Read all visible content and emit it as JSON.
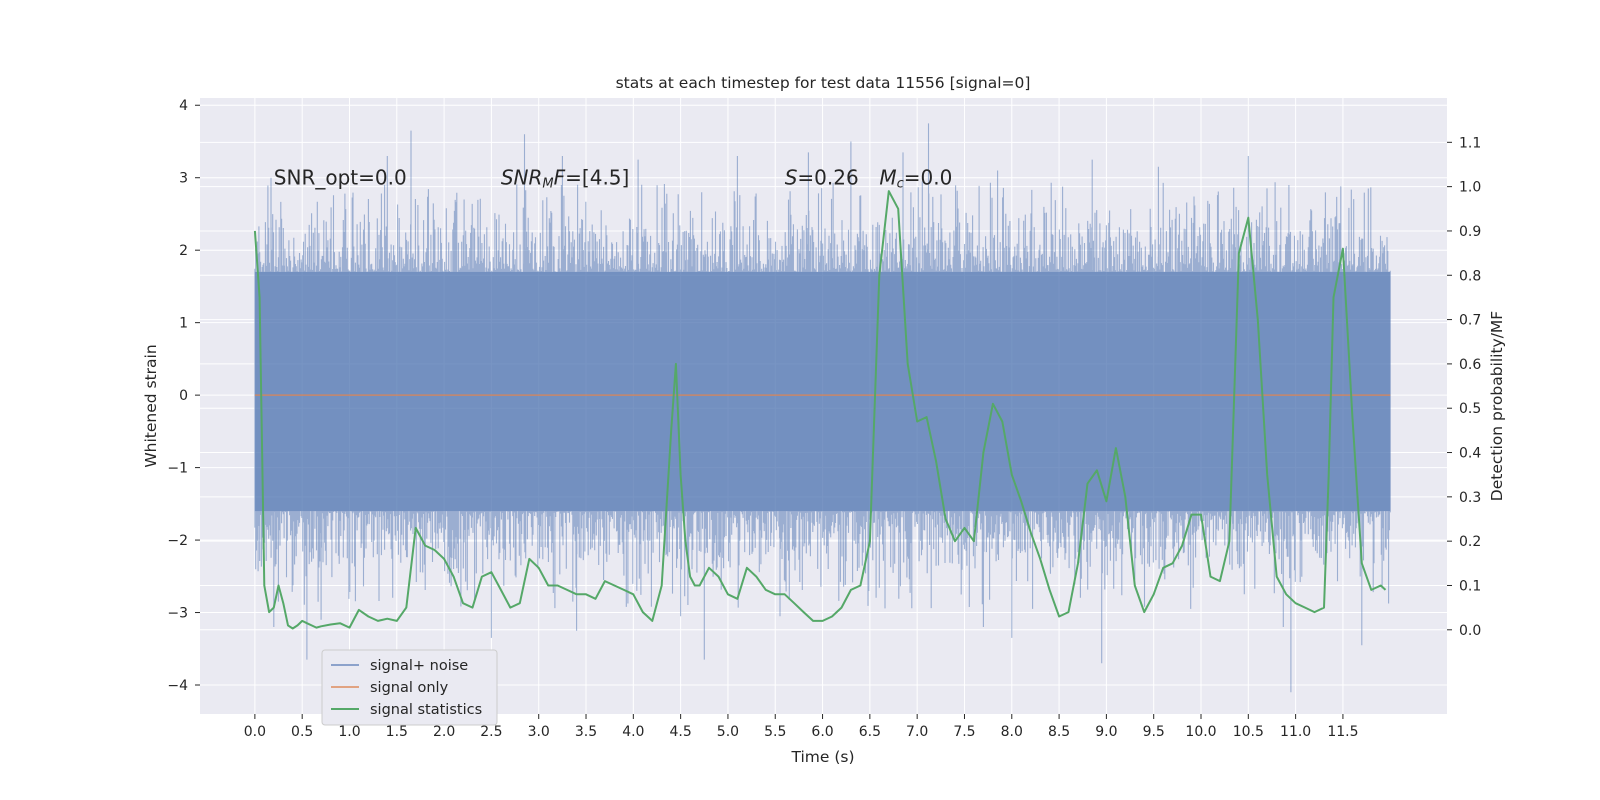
{
  "chart_data": {
    "type": "line",
    "title": "stats at each timestep for test data 11556 [signal=0]",
    "xlabel": "Time (s)",
    "ylabel": "Whitened strain",
    "y2label": "Detection probability/MF",
    "xlim": [
      -0.58,
      12.6
    ],
    "ylim": [
      -4.4,
      4.1
    ],
    "y2lim": [
      -0.19,
      1.2
    ],
    "x_ticks": [
      0.0,
      0.5,
      1.0,
      1.5,
      2.0,
      2.5,
      3.0,
      3.5,
      4.0,
      4.5,
      5.0,
      5.5,
      6.0,
      6.5,
      7.0,
      7.5,
      8.0,
      8.5,
      9.0,
      9.5,
      10.0,
      10.5,
      11.0,
      11.5
    ],
    "x_tick_labels": [
      "0.0",
      "0.5",
      "1.0",
      "1.5",
      "2.0",
      "2.5",
      "3.0",
      "3.5",
      "4.0",
      "4.5",
      "5.0",
      "5.5",
      "6.0",
      "6.5",
      "7.0",
      "7.5",
      "8.0",
      "8.5",
      "9.0",
      "9.5",
      "10.0",
      "10.5",
      "11.0",
      "11.5"
    ],
    "y_ticks": [
      -4,
      -3,
      -2,
      -1,
      0,
      1,
      2,
      3,
      4
    ],
    "y_tick_labels": [
      "−4",
      "−3",
      "−2",
      "−1",
      "0",
      "1",
      "2",
      "3",
      "4"
    ],
    "y2_ticks": [
      0.0,
      0.1,
      0.2,
      0.3,
      0.4,
      0.5,
      0.6,
      0.7,
      0.8,
      0.9,
      1.0,
      1.1
    ],
    "y2_tick_labels": [
      "0.0",
      "0.1",
      "0.2",
      "0.3",
      "0.4",
      "0.5",
      "0.6",
      "0.7",
      "0.8",
      "0.9",
      "1.0",
      "1.1"
    ],
    "grid": true,
    "legend_placement": "lower-left",
    "annotations": [
      {
        "parts": [
          {
            "text": "SNR_opt=0.0"
          }
        ],
        "x": 0.2,
        "y": 3.0
      },
      {
        "parts": [
          {
            "text": "SNR",
            "italic": true
          },
          {
            "text": "M",
            "italic": true,
            "sub": true
          },
          {
            "text": "F",
            "italic": true
          },
          {
            "text": "=[4.5]"
          }
        ],
        "x": 2.6,
        "y": 3.0
      },
      {
        "parts": [
          {
            "text": "S",
            "italic": true
          },
          {
            "text": "=0.26"
          }
        ],
        "x": 5.6,
        "y": 3.0
      },
      {
        "parts": [
          {
            "text": "M",
            "italic": true
          },
          {
            "text": "c",
            "italic": true,
            "sub": true
          },
          {
            "text": "=0.0"
          }
        ],
        "x": 6.6,
        "y": 3.0
      }
    ],
    "series": [
      {
        "name": "signal+ noise",
        "axis": "left",
        "style": "noise-band",
        "color": "#4c72b0",
        "x_range": [
          0.0,
          12.0
        ],
        "core_band": [
          -1.6,
          1.7
        ],
        "extremes": [
          {
            "x": 0.17,
            "y": 3.0
          },
          {
            "x": 0.2,
            "y": -3.2
          },
          {
            "x": 0.55,
            "y": -3.65
          },
          {
            "x": 0.7,
            "y": -3.1
          },
          {
            "x": 1.4,
            "y": 3.3
          },
          {
            "x": 1.65,
            "y": 3.65
          },
          {
            "x": 2.5,
            "y": -3.35
          },
          {
            "x": 2.85,
            "y": 3.6
          },
          {
            "x": 3.25,
            "y": 3.3
          },
          {
            "x": 3.4,
            "y": -3.25
          },
          {
            "x": 4.05,
            "y": 3.25
          },
          {
            "x": 4.5,
            "y": -3.05
          },
          {
            "x": 4.75,
            "y": -3.65
          },
          {
            "x": 5.1,
            "y": 3.3
          },
          {
            "x": 5.55,
            "y": -3.05
          },
          {
            "x": 5.85,
            "y": 3.35
          },
          {
            "x": 6.3,
            "y": 3.5
          },
          {
            "x": 6.85,
            "y": 3.35
          },
          {
            "x": 7.12,
            "y": 3.75
          },
          {
            "x": 7.7,
            "y": -3.2
          },
          {
            "x": 7.85,
            "y": 3.1
          },
          {
            "x": 8.0,
            "y": -3.35
          },
          {
            "x": 8.85,
            "y": 3.25
          },
          {
            "x": 8.95,
            "y": -3.7
          },
          {
            "x": 9.55,
            "y": 3.15
          },
          {
            "x": 10.5,
            "y": 3.3
          },
          {
            "x": 10.87,
            "y": -3.2
          },
          {
            "x": 10.95,
            "y": -4.1
          },
          {
            "x": 11.7,
            "y": -3.45
          }
        ]
      },
      {
        "name": "signal only",
        "axis": "left",
        "color": "#dd8452",
        "x": [
          0.0,
          12.0
        ],
        "y": [
          0.0,
          0.0
        ]
      },
      {
        "name": "signal statistics",
        "axis": "right",
        "color": "#55a868",
        "x": [
          0.0,
          0.05,
          0.1,
          0.15,
          0.2,
          0.25,
          0.3,
          0.35,
          0.4,
          0.45,
          0.5,
          0.55,
          0.6,
          0.65,
          0.7,
          0.8,
          0.9,
          1.0,
          1.1,
          1.2,
          1.3,
          1.4,
          1.5,
          1.6,
          1.7,
          1.8,
          1.9,
          2.0,
          2.1,
          2.2,
          2.3,
          2.4,
          2.5,
          2.6,
          2.7,
          2.8,
          2.9,
          3.0,
          3.1,
          3.2,
          3.3,
          3.4,
          3.5,
          3.6,
          3.7,
          3.8,
          3.9,
          4.0,
          4.1,
          4.2,
          4.3,
          4.4,
          4.45,
          4.5,
          4.55,
          4.6,
          4.65,
          4.7,
          4.8,
          4.9,
          5.0,
          5.1,
          5.2,
          5.3,
          5.4,
          5.5,
          5.6,
          5.7,
          5.8,
          5.9,
          6.0,
          6.1,
          6.2,
          6.3,
          6.4,
          6.5,
          6.6,
          6.7,
          6.8,
          6.9,
          7.0,
          7.1,
          7.2,
          7.3,
          7.4,
          7.5,
          7.6,
          7.7,
          7.8,
          7.9,
          8.0,
          8.1,
          8.2,
          8.3,
          8.4,
          8.5,
          8.6,
          8.7,
          8.8,
          8.9,
          9.0,
          9.1,
          9.2,
          9.3,
          9.4,
          9.5,
          9.6,
          9.7,
          9.8,
          9.9,
          10.0,
          10.1,
          10.2,
          10.3,
          10.4,
          10.5,
          10.6,
          10.7,
          10.8,
          10.9,
          11.0,
          11.1,
          11.2,
          11.3,
          11.35,
          11.4,
          11.5,
          11.6,
          11.7,
          11.8,
          11.9,
          11.95
        ],
        "y": [
          0.9,
          0.75,
          0.1,
          0.04,
          0.05,
          0.1,
          0.06,
          0.01,
          0.003,
          0.01,
          0.02,
          0.015,
          0.01,
          0.005,
          0.008,
          0.012,
          0.015,
          0.005,
          0.045,
          0.03,
          0.02,
          0.025,
          0.02,
          0.05,
          0.23,
          0.19,
          0.18,
          0.16,
          0.12,
          0.06,
          0.05,
          0.12,
          0.13,
          0.09,
          0.05,
          0.06,
          0.16,
          0.14,
          0.1,
          0.1,
          0.09,
          0.08,
          0.08,
          0.07,
          0.11,
          0.1,
          0.09,
          0.08,
          0.04,
          0.02,
          0.1,
          0.45,
          0.6,
          0.35,
          0.2,
          0.12,
          0.1,
          0.1,
          0.14,
          0.12,
          0.08,
          0.07,
          0.14,
          0.12,
          0.09,
          0.08,
          0.08,
          0.06,
          0.04,
          0.02,
          0.02,
          0.03,
          0.05,
          0.09,
          0.1,
          0.2,
          0.8,
          0.99,
          0.95,
          0.6,
          0.47,
          0.48,
          0.38,
          0.25,
          0.2,
          0.23,
          0.2,
          0.4,
          0.51,
          0.47,
          0.35,
          0.29,
          0.22,
          0.16,
          0.09,
          0.03,
          0.04,
          0.15,
          0.33,
          0.36,
          0.29,
          0.41,
          0.3,
          0.1,
          0.04,
          0.08,
          0.14,
          0.15,
          0.19,
          0.26,
          0.26,
          0.12,
          0.11,
          0.2,
          0.85,
          0.93,
          0.7,
          0.35,
          0.12,
          0.08,
          0.06,
          0.05,
          0.04,
          0.05,
          0.35,
          0.75,
          0.86,
          0.48,
          0.15,
          0.09,
          0.1,
          0.09
        ],
        "peaks": [
          {
            "x": 6.8,
            "y": 0.99
          },
          {
            "x": 10.3,
            "y": 0.95
          },
          {
            "x": 11.45,
            "y": 0.86
          }
        ]
      }
    ]
  }
}
